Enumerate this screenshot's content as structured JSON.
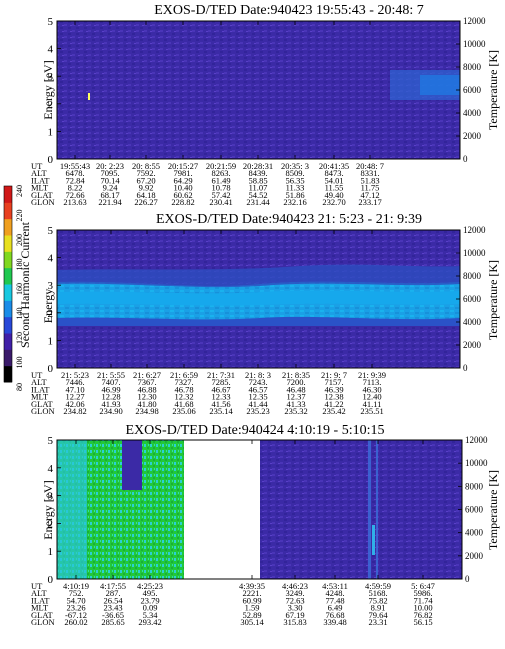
{
  "panels": [
    {
      "title": "EXOS-D/TED  Date:940423  19:55:43 - 20:48: 7",
      "y_ticks": [
        "0",
        "1",
        "2",
        "3",
        "4",
        "5"
      ],
      "t_ticks": [
        "0",
        "2000",
        "4000",
        "6000",
        "8000",
        "10000",
        "12000"
      ],
      "ylabel": "Energy [eV]",
      "y2label": "Temperature [K]",
      "rows": [
        {
          "label": "UT",
          "values": [
            "19:55:43",
            "20: 2:23",
            "20: 8:55",
            "20:15:27",
            "20:21:59",
            "20:28:31",
            "20:35: 3",
            "20:41:35",
            "20:48: 7"
          ]
        },
        {
          "label": "ALT",
          "values": [
            "6478.",
            "7095.",
            "7592.",
            "7981.",
            "8263.",
            "8439.",
            "8509.",
            "8473.",
            "8331."
          ]
        },
        {
          "label": "ILAT",
          "values": [
            "72.84",
            "70.14",
            "67.20",
            "64.29",
            "61.49",
            "58.85",
            "56.35",
            "54.01",
            "51.83"
          ]
        },
        {
          "label": "MLT",
          "values": [
            "8.22",
            "9.24",
            "9.92",
            "10.40",
            "10.78",
            "11.07",
            "11.33",
            "11.55",
            "11.75"
          ]
        },
        {
          "label": "GLAT",
          "values": [
            "72.66",
            "68.17",
            "64.18",
            "60.62",
            "57.42",
            "54.52",
            "51.86",
            "49.40",
            "47.12"
          ]
        },
        {
          "label": "GLON",
          "values": [
            "213.63",
            "221.94",
            "226.27",
            "228.82",
            "230.41",
            "231.44",
            "232.16",
            "232.70",
            "233.17"
          ]
        }
      ]
    },
    {
      "title": "EXOS-D/TED   Date:940423  21: 5:23 - 21: 9:39",
      "y_ticks": [
        "0",
        "1",
        "2",
        "3",
        "4",
        "5"
      ],
      "t_ticks": [
        "0",
        "2000",
        "4000",
        "6000",
        "8000",
        "10000",
        "12000"
      ],
      "ylabel": "Energy",
      "y2label": "Temperature [K]",
      "rows": [
        {
          "label": "UT",
          "values": [
            "21: 5:23",
            "21: 5:55",
            "21: 6:27",
            "21: 6:59",
            "21: 7:31",
            "21: 8: 3",
            "21: 8:35",
            "21: 9: 7",
            "21: 9:39"
          ]
        },
        {
          "label": "ALT",
          "values": [
            "7446.",
            "7407.",
            "7367.",
            "7327.",
            "7285.",
            "7243.",
            "7200.",
            "7157.",
            "7113."
          ]
        },
        {
          "label": "ILAT",
          "values": [
            "47.10",
            "46.99",
            "46.88",
            "46.78",
            "46.67",
            "46.57",
            "46.48",
            "46.39",
            "46.30"
          ]
        },
        {
          "label": "MLT",
          "values": [
            "12.27",
            "12.28",
            "12.30",
            "12.32",
            "12.33",
            "12.35",
            "12.37",
            "12.38",
            "12.40"
          ]
        },
        {
          "label": "GLAT",
          "values": [
            "42.06",
            "41.93",
            "41.80",
            "41.68",
            "41.56",
            "41.44",
            "41.33",
            "41.22",
            "41.11"
          ]
        },
        {
          "label": "GLON",
          "values": [
            "234.82",
            "234.90",
            "234.98",
            "235.06",
            "235.14",
            "235.23",
            "235.32",
            "235.42",
            "235.51"
          ]
        }
      ]
    },
    {
      "title": "EXOS-D/TED  Date:940424  4:10:19 - 5:10:15",
      "y_ticks": [
        "0",
        "1",
        "2",
        "3",
        "4",
        "5"
      ],
      "t_ticks": [
        "0",
        "2000",
        "4000",
        "6000",
        "8000",
        "10000",
        "12000"
      ],
      "ylabel": "Energy [eV]",
      "y2label": "Temperature [K]",
      "rows": [
        {
          "label": "UT",
          "values": [
            "4:10:19",
            "4:17:55",
            "4:25:23",
            "",
            "4:39:35",
            "4:46:23",
            "4:53:11",
            "4:59:59",
            "5: 6:47"
          ]
        },
        {
          "label": "ALT",
          "values": [
            "752.",
            "287.",
            "495.",
            "",
            "2221.",
            "3249.",
            "4248.",
            "5168.",
            "5986."
          ]
        },
        {
          "label": "ILAT",
          "values": [
            "54.70",
            "26.54",
            "23.79",
            "",
            "60.99",
            "72.63",
            "77.48",
            "75.82",
            "71.74"
          ]
        },
        {
          "label": "MLT",
          "values": [
            "23.26",
            "23.43",
            "0.09",
            "",
            "1.59",
            "3.30",
            "6.49",
            "8.91",
            "10.00"
          ]
        },
        {
          "label": "GLAT",
          "values": [
            "-67.12",
            "-36.65",
            "5.34",
            "",
            "52.89",
            "67.19",
            "76.68",
            "79.64",
            "76.82"
          ]
        },
        {
          "label": "GLON",
          "values": [
            "260.02",
            "285.65",
            "293.42",
            "",
            "305.14",
            "315.83",
            "339.48",
            "23.31",
            "56.15"
          ]
        }
      ]
    }
  ],
  "colorbar": {
    "label": "Second Harmonic Current",
    "ticks": [
      "80",
      "100",
      "120",
      "140",
      "160",
      "180",
      "200",
      "220",
      "240"
    ]
  },
  "chart_data": [
    {
      "type": "heatmap",
      "title": "EXOS-D/TED  Date:940423  19:55:43 - 20:48: 7",
      "xlabel": "",
      "ylabel": "Energy [eV]",
      "y2label": "Temperature [K]",
      "ylim": [
        0,
        5
      ],
      "y2lim": [
        0,
        12000
      ],
      "x": [
        "19:55:43",
        "20: 2:23",
        "20: 8:55",
        "20:15:27",
        "20:21:59",
        "20:28:31",
        "20:35: 3",
        "20:41:35",
        "20:48: 7"
      ],
      "description_values": {
        "background_level": 120,
        "late_band_energy_range_eV": [
          2.0,
          3.0
        ],
        "late_band_level": 140
      }
    },
    {
      "type": "heatmap",
      "title": "EXOS-D/TED   Date:940423  21: 5:23 - 21: 9:39",
      "ylabel": "Energy",
      "y2label": "Temperature [K]",
      "ylim": [
        0,
        5
      ],
      "y2lim": [
        0,
        12000
      ],
      "x": [
        "21: 5:23",
        "21: 5:55",
        "21: 6:27",
        "21: 6:59",
        "21: 7:31",
        "21: 8: 3",
        "21: 8:35",
        "21: 9: 7",
        "21: 9:39"
      ],
      "bands": [
        {
          "energy_range_eV": [
            0,
            1.2
          ],
          "level": 120
        },
        {
          "energy_range_eV": [
            1.2,
            1.6
          ],
          "level": 130
        },
        {
          "energy_range_eV": [
            1.6,
            3.2
          ],
          "level": 150
        },
        {
          "energy_range_eV": [
            3.2,
            5
          ],
          "level": 125
        }
      ]
    },
    {
      "type": "heatmap",
      "title": "EXOS-D/TED  Date:940424  4:10:19 - 5:10:15",
      "ylabel": "Energy [eV]",
      "y2label": "Temperature [K]",
      "ylim": [
        0,
        5
      ],
      "y2lim": [
        0,
        12000
      ],
      "x": [
        "4:10:19",
        "4:17:55",
        "4:25:23",
        "4:39:35",
        "4:46:23",
        "4:53:11",
        "4:59:59",
        "5: 6:47"
      ],
      "segments": [
        {
          "from": "4:10:19",
          "to": "4:28:00",
          "level": 175
        },
        {
          "from": "4:28:00",
          "to": "4:39:35",
          "level": null
        },
        {
          "from": "4:39:35",
          "to": "5: 8:00",
          "level": 120
        }
      ]
    }
  ],
  "colors": {
    "background_purple": "#3b2aa6",
    "noise_purple": "#5a3bc4",
    "band_blue": "#1e6ee0",
    "band_cyan": "#1aa0e6",
    "green": "#22c83a",
    "cyan_light": "#28d0e0"
  }
}
